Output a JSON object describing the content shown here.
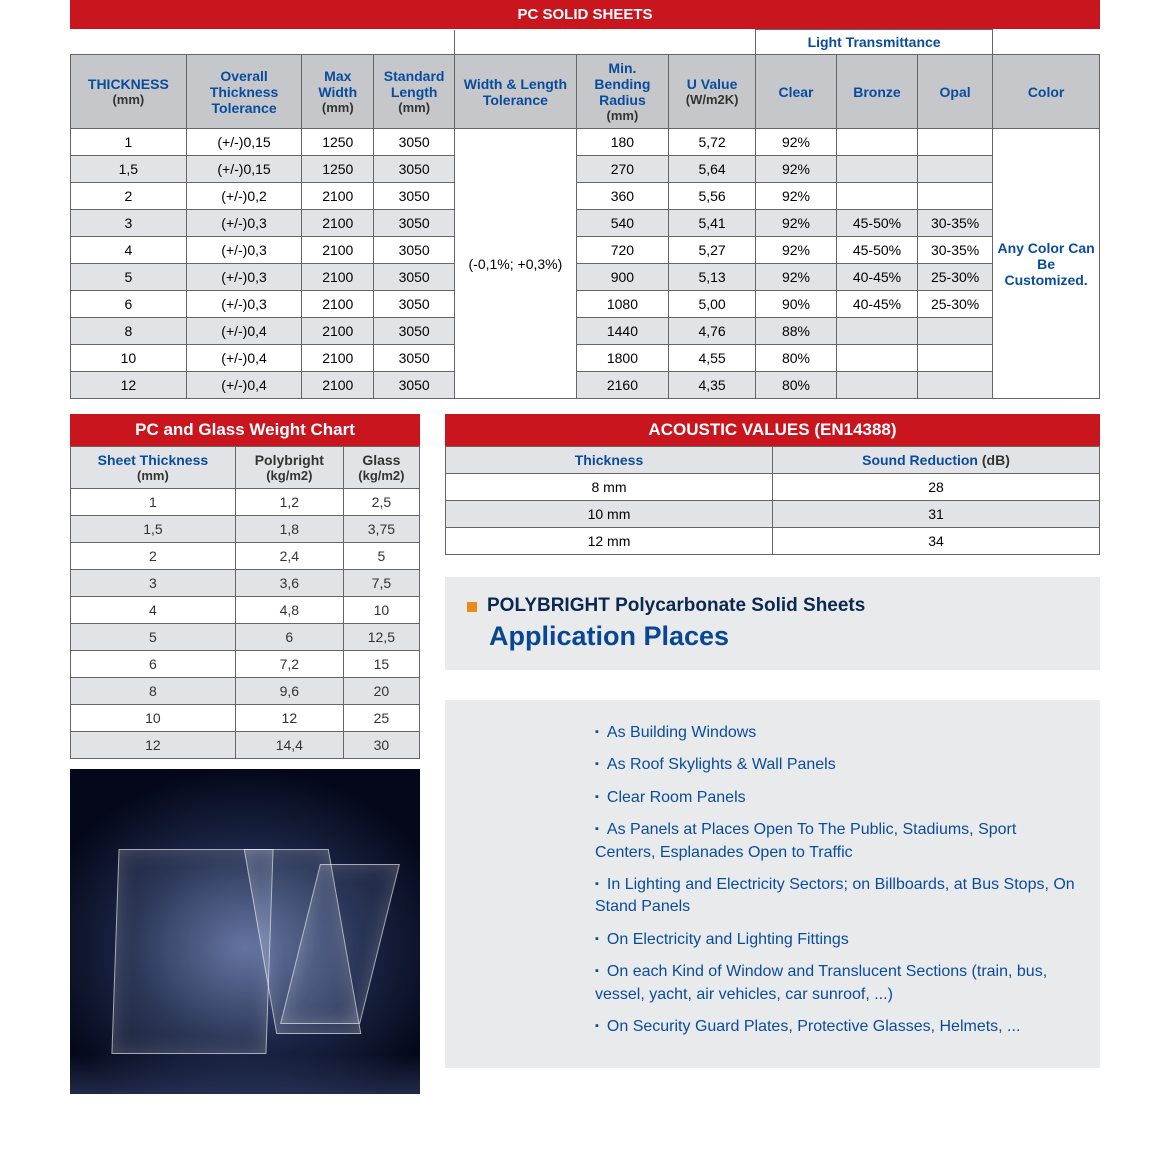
{
  "colors": {
    "red": "#c9151e",
    "blue": "#0a4c9c",
    "darkblue": "#074793",
    "grey_header": "#c5c7cb",
    "grey_alt": "#e2e3e6",
    "grey_box": "#e9eaec",
    "orange": "#e88b1a"
  },
  "main_table": {
    "title": "PC SOLID SHEETS",
    "lt_group": "Light Transmittance",
    "headers": {
      "thickness": "THICKNESS",
      "thickness_unit": "(mm)",
      "tol": "Overall Thickness Tolerance",
      "maxw": "Max Width",
      "maxw_unit": "(mm)",
      "stdlen": "Standard Length",
      "stdlen_unit": "(mm)",
      "wltol": "Width & Length Tolerance",
      "minbend": "Min. Bending Radius",
      "minbend_unit": "(mm)",
      "uval": "U Value",
      "uval_unit": "(W/m2K)",
      "clear": "Clear",
      "bronze": "Bronze",
      "opal": "Opal",
      "color": "Color"
    },
    "wl_tol_value": "(-0,1%; +0,3%)",
    "color_note": "Any Color Can Be Customized.",
    "rows": [
      {
        "t": "1",
        "tol": "(+/-)0,15",
        "w": "1250",
        "l": "3050",
        "bend": "180",
        "u": "5,72",
        "clear": "92%",
        "bronze": "",
        "opal": ""
      },
      {
        "t": "1,5",
        "tol": "(+/-)0,15",
        "w": "1250",
        "l": "3050",
        "bend": "270",
        "u": "5,64",
        "clear": "92%",
        "bronze": "",
        "opal": ""
      },
      {
        "t": "2",
        "tol": "(+/-)0,2",
        "w": "2100",
        "l": "3050",
        "bend": "360",
        "u": "5,56",
        "clear": "92%",
        "bronze": "",
        "opal": ""
      },
      {
        "t": "3",
        "tol": "(+/-)0,3",
        "w": "2100",
        "l": "3050",
        "bend": "540",
        "u": "5,41",
        "clear": "92%",
        "bronze": "45-50%",
        "opal": "30-35%"
      },
      {
        "t": "4",
        "tol": "(+/-)0,3",
        "w": "2100",
        "l": "3050",
        "bend": "720",
        "u": "5,27",
        "clear": "92%",
        "bronze": "45-50%",
        "opal": "30-35%"
      },
      {
        "t": "5",
        "tol": "(+/-)0,3",
        "w": "2100",
        "l": "3050",
        "bend": "900",
        "u": "5,13",
        "clear": "92%",
        "bronze": "40-45%",
        "opal": "25-30%"
      },
      {
        "t": "6",
        "tol": "(+/-)0,3",
        "w": "2100",
        "l": "3050",
        "bend": "1080",
        "u": "5,00",
        "clear": "90%",
        "bronze": "40-45%",
        "opal": "25-30%"
      },
      {
        "t": "8",
        "tol": "(+/-)0,4",
        "w": "2100",
        "l": "3050",
        "bend": "1440",
        "u": "4,76",
        "clear": "88%",
        "bronze": "",
        "opal": ""
      },
      {
        "t": "10",
        "tol": "(+/-)0,4",
        "w": "2100",
        "l": "3050",
        "bend": "1800",
        "u": "4,55",
        "clear": "80%",
        "bronze": "",
        "opal": ""
      },
      {
        "t": "12",
        "tol": "(+/-)0,4",
        "w": "2100",
        "l": "3050",
        "bend": "2160",
        "u": "4,35",
        "clear": "80%",
        "bronze": "",
        "opal": ""
      }
    ]
  },
  "weight_table": {
    "title": "PC and Glass Weight Chart",
    "h1": "Sheet Thickness",
    "h1_unit": "(mm)",
    "h2": "Polybright",
    "h2_unit": "(kg/m2)",
    "h3": "Glass",
    "h3_unit": "(kg/m2)",
    "rows": [
      {
        "t": "1",
        "p": "1,2",
        "g": "2,5"
      },
      {
        "t": "1,5",
        "p": "1,8",
        "g": "3,75"
      },
      {
        "t": "2",
        "p": "2,4",
        "g": "5"
      },
      {
        "t": "3",
        "p": "3,6",
        "g": "7,5"
      },
      {
        "t": "4",
        "p": "4,8",
        "g": "10"
      },
      {
        "t": "5",
        "p": "6",
        "g": "12,5"
      },
      {
        "t": "6",
        "p": "7,2",
        "g": "15"
      },
      {
        "t": "8",
        "p": "9,6",
        "g": "20"
      },
      {
        "t": "10",
        "p": "12",
        "g": "25"
      },
      {
        "t": "12",
        "p": "14,4",
        "g": "30"
      }
    ]
  },
  "acoustic": {
    "title": "ACOUSTIC VALUES (EN14388)",
    "h1": "Thickness",
    "h2": "Sound Reduction",
    "h2_unit": "(dB)",
    "rows": [
      {
        "t": "8 mm",
        "v": "28"
      },
      {
        "t": "10 mm",
        "v": "31"
      },
      {
        "t": "12 mm",
        "v": "34"
      }
    ]
  },
  "app": {
    "title1": "POLYBRIGHT Polycarbonate Solid Sheets",
    "title2": "Application Places",
    "items": [
      "As Building Windows",
      "As Roof Skylights & Wall Panels",
      "Clear Room Panels",
      "As Panels at Places Open To The Public, Stadiums, Sport Centers, Esplanades Open to Traffic",
      "In Lighting and Electricity Sectors; on Billboards, at Bus Stops, On Stand Panels",
      "On Electricity and Lighting Fittings",
      "On each Kind of Window and Translucent Sections (train, bus, vessel, yacht, air vehicles, car sunroof, ...)",
      "On Security Guard Plates, Protective Glasses, Helmets, ..."
    ]
  }
}
